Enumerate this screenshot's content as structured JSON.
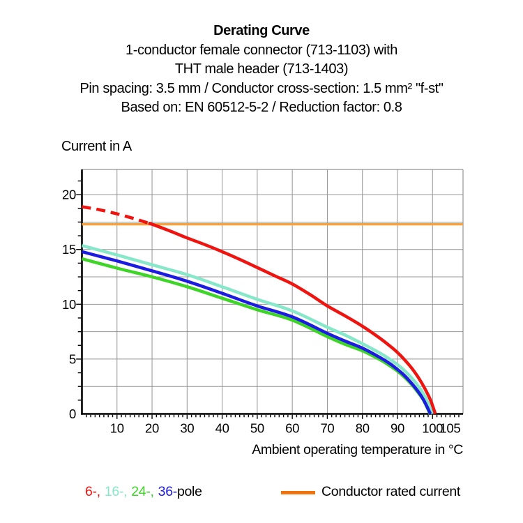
{
  "title_block": {
    "title": "Derating Curve",
    "subtitle_lines": [
      "1-conductor female connector (713-1103) with",
      "THT male header (713-1403)",
      "Pin spacing: 3.5 mm / Conductor cross-section: 1.5 mm² \"f-st\"",
      "Based on: EN 60512-5-2 / Reduction factor: 0.8"
    ]
  },
  "chart_data": {
    "type": "line",
    "title": "Derating Curve",
    "xlabel": "Ambient operating temperature in °C",
    "ylabel": "Current in A",
    "xlim": [
      0,
      108.7
    ],
    "ylim": [
      0,
      22.3
    ],
    "x_major_ticks": [
      10,
      20,
      30,
      40,
      50,
      60,
      70,
      80,
      90,
      100,
      105
    ],
    "y_major_ticks": [
      0,
      5,
      10,
      15,
      20
    ],
    "x_gridlines": [
      10,
      20,
      30,
      40,
      50,
      60,
      70,
      80,
      90,
      100
    ],
    "y_gridlines": [
      2.5,
      5,
      7.5,
      10,
      12.5,
      15,
      17.5,
      20
    ],
    "x_minor_tick_step": 1.25,
    "y_minor_tick_step": 1.25,
    "grid": true,
    "legend_position": "bottom",
    "series": [
      {
        "name": "Conductor rated current",
        "color": "#f8a13e",
        "width": 3.2,
        "smooth": false,
        "segments": [
          {
            "dash": false,
            "points": [
              [
                0,
                17.3
              ],
              [
                108.7,
                17.3
              ]
            ]
          }
        ]
      },
      {
        "name": "24-pole",
        "color": "#3ed428",
        "width": 4.5,
        "smooth": true,
        "segments": [
          {
            "dash": false,
            "points": [
              [
                0,
                14.15
              ],
              [
                10,
                13.3
              ],
              [
                20,
                12.5
              ],
              [
                30,
                11.6
              ],
              [
                40,
                10.55
              ],
              [
                50,
                9.5
              ],
              [
                60,
                8.55
              ],
              [
                70,
                7.05
              ],
              [
                75,
                6.35
              ],
              [
                80,
                5.75
              ],
              [
                85,
                4.95
              ],
              [
                88,
                4.35
              ],
              [
                90,
                3.9
              ],
              [
                92,
                3.35
              ],
              [
                94,
                2.7
              ],
              [
                96,
                1.9
              ],
              [
                97.5,
                1.2
              ],
              [
                99.3,
                0
              ]
            ]
          }
        ]
      },
      {
        "name": "16-pole",
        "color": "#87e7c9",
        "width": 4.5,
        "smooth": true,
        "segments": [
          {
            "dash": false,
            "points": [
              [
                0,
                15.35
              ],
              [
                10,
                14.5
              ],
              [
                20,
                13.6
              ],
              [
                30,
                12.7
              ],
              [
                40,
                11.6
              ],
              [
                50,
                10.45
              ],
              [
                60,
                9.4
              ],
              [
                70,
                7.9
              ],
              [
                75,
                7.2
              ],
              [
                80,
                6.4
              ],
              [
                85,
                5.55
              ],
              [
                88,
                4.95
              ],
              [
                90,
                4.5
              ],
              [
                92,
                3.95
              ],
              [
                94,
                3.3
              ],
              [
                96,
                2.5
              ],
              [
                98,
                1.5
              ],
              [
                100,
                0
              ]
            ]
          }
        ]
      },
      {
        "name": "36-pole",
        "color": "#1c1ce0",
        "width": 4.5,
        "smooth": true,
        "segments": [
          {
            "dash": false,
            "points": [
              [
                0,
                14.8
              ],
              [
                10,
                13.95
              ],
              [
                20,
                13.05
              ],
              [
                30,
                12.1
              ],
              [
                40,
                11.0
              ],
              [
                50,
                9.85
              ],
              [
                60,
                8.85
              ],
              [
                70,
                7.35
              ],
              [
                75,
                6.65
              ],
              [
                80,
                6.0
              ],
              [
                85,
                5.15
              ],
              [
                88,
                4.55
              ],
              [
                90,
                4.05
              ],
              [
                92,
                3.5
              ],
              [
                94,
                2.8
              ],
              [
                96,
                2.0
              ],
              [
                97.5,
                1.25
              ],
              [
                99.4,
                0
              ]
            ]
          }
        ]
      },
      {
        "name": "6-pole",
        "color": "#ee1511",
        "width": 4.5,
        "smooth": true,
        "segments": [
          {
            "dash": true,
            "points": [
              [
                0,
                18.9
              ],
              [
                5,
                18.62
              ],
              [
                10,
                18.25
              ],
              [
                15,
                17.8
              ],
              [
                19,
                17.4
              ]
            ]
          },
          {
            "dash": false,
            "points": [
              [
                19,
                17.4
              ],
              [
                20,
                17.3
              ],
              [
                25,
                16.7
              ],
              [
                30,
                16.05
              ],
              [
                35,
                15.45
              ],
              [
                40,
                14.8
              ],
              [
                45,
                14.1
              ],
              [
                50,
                13.35
              ],
              [
                55,
                12.6
              ],
              [
                60,
                11.85
              ],
              [
                65,
                10.9
              ],
              [
                70,
                9.85
              ],
              [
                75,
                8.95
              ],
              [
                80,
                8.0
              ],
              [
                85,
                6.9
              ],
              [
                88,
                6.15
              ],
              [
                90,
                5.6
              ],
              [
                92,
                4.95
              ],
              [
                94,
                4.2
              ],
              [
                96,
                3.3
              ],
              [
                98,
                2.2
              ],
              [
                99.5,
                1.2
              ],
              [
                100.8,
                0
              ]
            ]
          }
        ]
      }
    ],
    "rated_current_value": 17.3
  },
  "legend": {
    "poles": [
      {
        "label": "6-,",
        "color": "#ee1511",
        "series": "6-pole"
      },
      {
        "label": "16-,",
        "color": "#87e7c9",
        "series": "16-pole"
      },
      {
        "label": "24-,",
        "color": "#3ed428",
        "series": "24-pole"
      },
      {
        "label": "36-",
        "color": "#1c1ce0",
        "series": "36-pole"
      }
    ],
    "poles_suffix": "pole",
    "rated": {
      "label": "Conductor rated current",
      "swatch_color": "#f1730f"
    }
  },
  "style_colors": {
    "grid": "#949494",
    "axis": "#000000",
    "text": "#000000"
  }
}
